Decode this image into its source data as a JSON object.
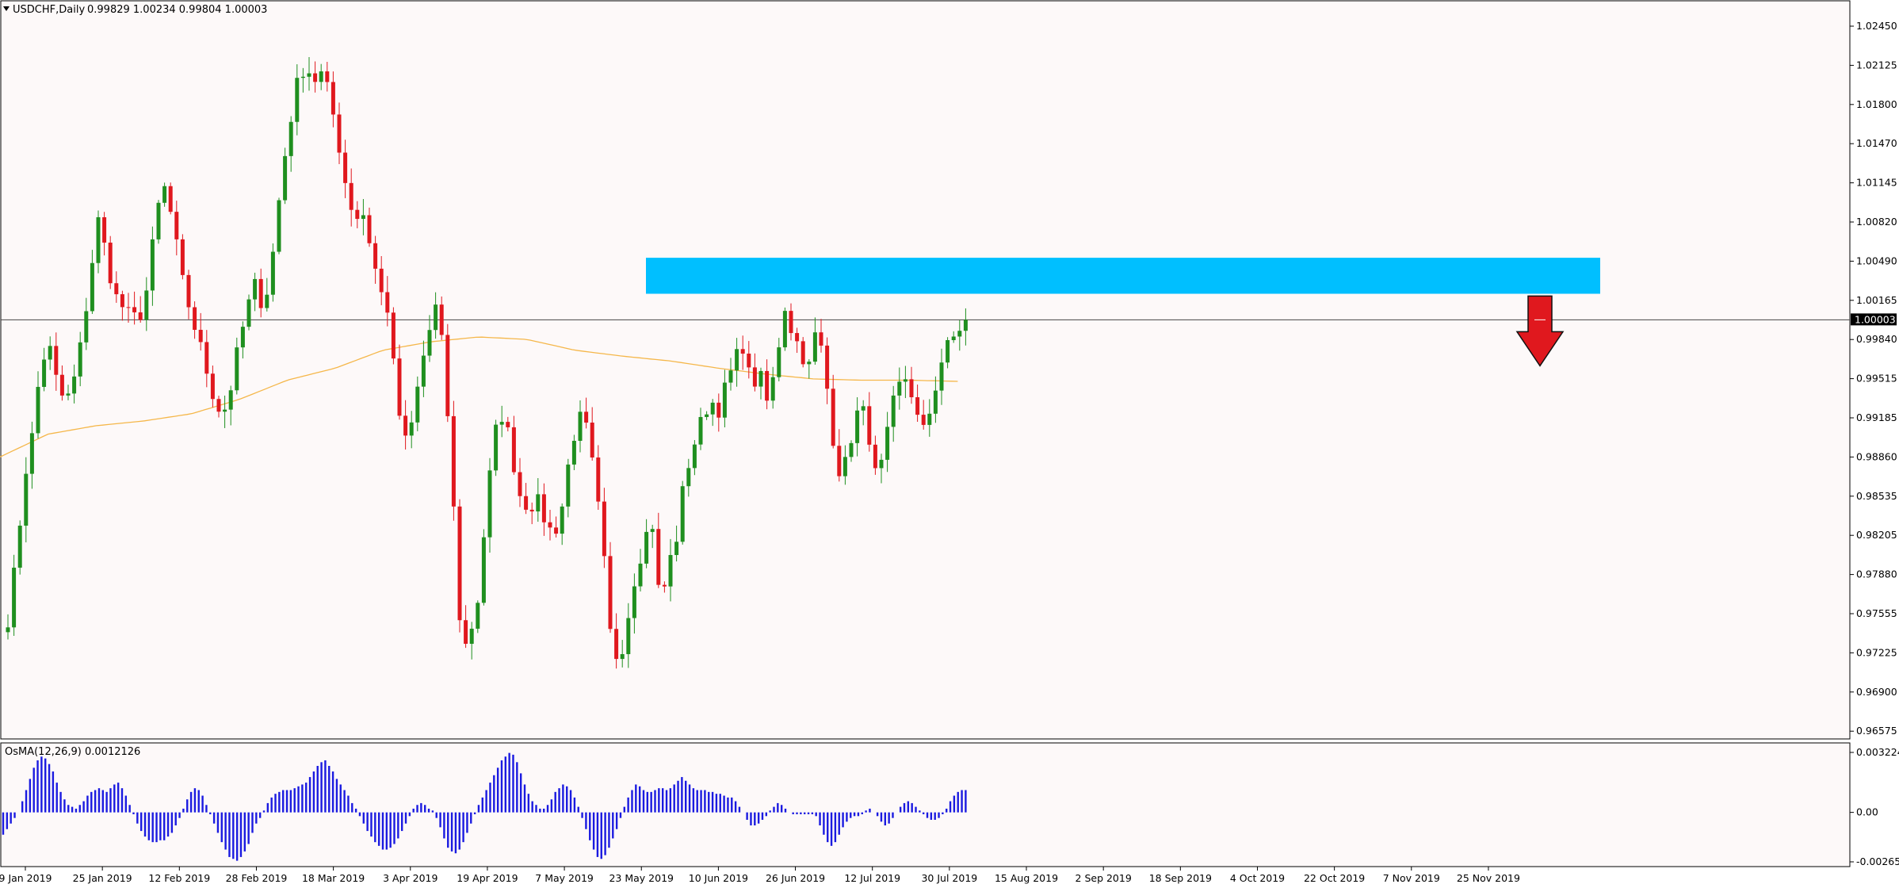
{
  "chart_data": {
    "type": "candlestick",
    "symbol_header": "USDCHF,Daily",
    "ohlc_header": "0.99829 1.00234 0.99804 1.00003",
    "current_price": "1.00003",
    "price_axis_ticks": [
      "1.02450",
      "1.02125",
      "1.01800",
      "1.01470",
      "1.01145",
      "1.00820",
      "1.00490",
      "1.00165",
      "0.99840",
      "0.99515",
      "0.99185",
      "0.98860",
      "0.98535",
      "0.98205",
      "0.97880",
      "0.97555",
      "0.97225",
      "0.96900",
      "0.96575"
    ],
    "ylim": [
      0.9643,
      1.026
    ],
    "date_axis_ticks": [
      "9 Jan 2019",
      "25 Jan 2019",
      "12 Feb 2019",
      "28 Feb 2019",
      "18 Mar 2019",
      "3 Apr 2019",
      "19 Apr 2019",
      "7 May 2019",
      "23 May 2019",
      "10 Jun 2019",
      "26 Jun 2019",
      "12 Jul 2019",
      "30 Jul 2019",
      "15 Aug 2019",
      "2 Sep 2019",
      "18 Sep 2019",
      "4 Oct 2019",
      "22 Oct 2019",
      "7 Nov 2019",
      "25 Nov 2019"
    ],
    "close_path": [
      0.9752,
      0.98,
      0.987,
      0.9905,
      0.9965,
      0.9978,
      0.9945,
      0.993,
      0.995,
      0.9985,
      1.004,
      1.0085,
      1.005,
      1.002,
      1.001,
      1.0,
      1.0005,
      1.003,
      1.009,
      1.011,
      1.008,
      1.0035,
      1.001,
      0.9985,
      0.996,
      0.9935,
      0.992,
      0.9945,
      0.998,
      1.001,
      1.003,
      1.001,
      1.005,
      1.011,
      1.016,
      1.0195,
      1.0215,
      1.02,
      1.0205,
      1.0185,
      1.015,
      1.011,
      1.0085,
      1.009,
      1.006,
      1.0025,
      1.001,
      0.994,
      0.9895,
      0.9915,
      0.996,
      0.999,
      1.0015,
      0.995,
      0.984,
      0.972,
      0.974,
      0.977,
      0.985,
      0.9905,
      0.9925,
      0.989,
      0.9855,
      0.9845,
      0.985,
      0.9835,
      0.982,
      0.984,
      0.9885,
      0.992,
      0.991,
      0.987,
      0.9815,
      0.9735,
      0.9715,
      0.975,
      0.979,
      0.9815,
      0.9835,
      0.976,
      0.9795,
      0.982,
      0.987,
      0.9895,
      0.9915,
      0.9935,
      0.9925,
      0.9945,
      0.9965,
      0.998,
      0.9945,
      0.9955,
      0.993,
      0.996,
      1.0015,
      0.999,
      0.9975,
      0.996,
      0.9995,
      0.9955,
      0.99,
      0.9865,
      0.99,
      0.9925,
      0.992,
      0.987,
      0.988,
      0.9925,
      0.9945,
      0.9955,
      0.992,
      0.9905,
      0.9935,
      0.9965,
      0.998,
      0.999,
      1.0003
    ],
    "sma_path": [
      0.9886,
      0.9905,
      0.9912,
      0.9916,
      0.9922,
      0.9934,
      0.995,
      0.996,
      0.9975,
      0.9982,
      0.9986,
      0.9984,
      0.9975,
      0.997,
      0.9966,
      0.996,
      0.9955,
      0.9951,
      0.995,
      0.995,
      0.9949
    ],
    "highlight_zone": {
      "from": 1.0022,
      "to": 1.0052,
      "color": "#00BFFF"
    },
    "signal_arrow": {
      "direction": "down",
      "color": "#E0181E"
    },
    "candle_colors": {
      "up": "#1F8F1F",
      "down": "#E0181E",
      "sma": "#F5B74A"
    },
    "oscillator": {
      "label": "OsMA(12,26,9) 0.0012126",
      "ticks": [
        "0.0032246",
        "0.00",
        "-0.002659"
      ],
      "ylim": [
        -0.0029,
        0.0034
      ],
      "color": "#1A1AE0",
      "values": [
        -0.0012,
        -0.0009,
        -0.0006,
        -0.0003,
        0.0,
        0.0006,
        0.0012,
        0.0018,
        0.0024,
        0.0028,
        0.003,
        0.0029,
        0.0026,
        0.0022,
        0.0016,
        0.0011,
        0.0007,
        0.0004,
        0.0003,
        0.0002,
        0.0004,
        0.0006,
        0.0009,
        0.0011,
        0.0012,
        0.0013,
        0.0012,
        0.0011,
        0.0013,
        0.0015,
        0.0016,
        0.0013,
        0.0009,
        0.0004,
        -0.0001,
        -0.0006,
        -0.001,
        -0.0013,
        -0.0015,
        -0.0016,
        -0.0016,
        -0.0015,
        -0.0015,
        -0.0013,
        -0.0011,
        -0.0007,
        -0.0003,
        0.0002,
        0.0007,
        0.0011,
        0.0013,
        0.0012,
        0.0009,
        0.0004,
        -0.0001,
        -0.0006,
        -0.0011,
        -0.0016,
        -0.002,
        -0.0024,
        -0.0025,
        -0.0026,
        -0.0024,
        -0.0021,
        -0.0017,
        -0.0011,
        -0.0006,
        -0.0003,
        0.0001,
        0.0005,
        0.0008,
        0.001,
        0.0011,
        0.0012,
        0.0012,
        0.0012,
        0.0013,
        0.0014,
        0.0015,
        0.0016,
        0.0019,
        0.0022,
        0.0025,
        0.0027,
        0.0028,
        0.0025,
        0.0022,
        0.0018,
        0.0015,
        0.0012,
        0.0009,
        0.0005,
        0.0002,
        -0.0002,
        -0.0006,
        -0.001,
        -0.0013,
        -0.0016,
        -0.0018,
        -0.002,
        -0.002,
        -0.0019,
        -0.0017,
        -0.0014,
        -0.001,
        -0.0006,
        -0.0002,
        0.0002,
        0.0004,
        0.0005,
        0.0004,
        0.0002,
        0.0001,
        -0.0003,
        -0.0008,
        -0.0014,
        -0.0019,
        -0.0021,
        -0.0022,
        -0.002,
        -0.0016,
        -0.0011,
        -0.0006,
        -0.0001,
        0.0004,
        0.0008,
        0.0012,
        0.0016,
        0.002,
        0.0024,
        0.0028,
        0.003,
        0.0032,
        0.0031,
        0.0027,
        0.0021,
        0.0015,
        0.001,
        0.0006,
        0.0004,
        0.0002,
        0.0002,
        0.0004,
        0.0007,
        0.0011,
        0.0013,
        0.0015,
        0.0014,
        0.0012,
        0.0008,
        0.0003,
        -0.0003,
        -0.0009,
        -0.0015,
        -0.002,
        -0.0024,
        -0.0025,
        -0.0023,
        -0.0019,
        -0.0014,
        -0.0009,
        -0.0003,
        0.0003,
        0.0008,
        0.0012,
        0.0015,
        0.0014,
        0.0012,
        0.0011,
        0.0011,
        0.0012,
        0.0013,
        0.0013,
        0.0012,
        0.0013,
        0.0015,
        0.0017,
        0.0019,
        0.0017,
        0.0015,
        0.0013,
        0.0012,
        0.0012,
        0.0012,
        0.0011,
        0.0011,
        0.001,
        0.001,
        0.0009,
        0.0008,
        0.0008,
        0.0006,
        0.0003,
        0.0,
        -0.0004,
        -0.0007,
        -0.0007,
        -0.0006,
        -0.0004,
        -0.0002,
        0.0001,
        0.0003,
        0.0005,
        0.0004,
        0.0002,
        0.0,
        -0.0001,
        -0.0001,
        -0.0001,
        -0.0001,
        -0.0001,
        -0.0001,
        -0.0002,
        -0.0007,
        -0.0012,
        -0.0016,
        -0.0018,
        -0.0016,
        -0.0012,
        -0.0008,
        -0.0005,
        -0.0003,
        -0.0002,
        -0.0002,
        -0.0001,
        0.0001,
        0.0002,
        0.0,
        -0.0002,
        -0.0005,
        -0.0007,
        -0.0006,
        -0.0003,
        0.0,
        0.0003,
        0.0005,
        0.0006,
        0.0005,
        0.0003,
        0.0001,
        -0.0001,
        -0.0003,
        -0.0004,
        -0.0004,
        -0.0003,
        -0.0001,
        0.0002,
        0.0006,
        0.0009,
        0.0011,
        0.0012,
        0.0012
      ]
    }
  }
}
